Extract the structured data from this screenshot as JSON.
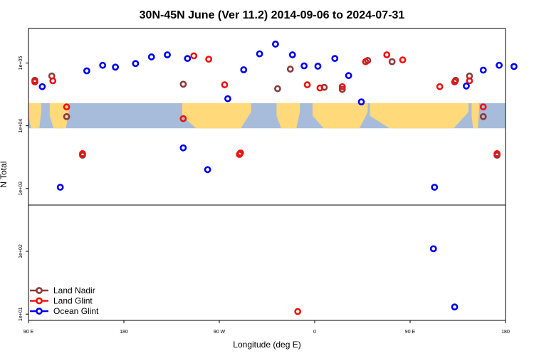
{
  "chart_data": {
    "type": "scatter",
    "title": "30N-45N June (Ver 11.2)   2014-09-06 to 2024-07-31",
    "xlabel": "Longitude (deg E)",
    "ylabel": "N Total",
    "yscale": "log",
    "xlim": [
      90,
      540
    ],
    "ylim_log10": [
      0.9,
      5.55
    ],
    "x_ticks": [
      {
        "value": 90,
        "label": "90 E"
      },
      {
        "value": 180,
        "label": "180"
      },
      {
        "value": 270,
        "label": "90 W"
      },
      {
        "value": 360,
        "label": "0"
      },
      {
        "value": 450,
        "label": "90 E"
      },
      {
        "value": 540,
        "label": "180"
      }
    ],
    "y_ticks": [
      {
        "value": 10,
        "label": "1e+01"
      },
      {
        "value": 100,
        "label": "1e+02"
      },
      {
        "value": 1000,
        "label": "1e+03"
      },
      {
        "value": 10000,
        "label": "1e+04"
      },
      {
        "value": 100000,
        "label": "1e+05"
      }
    ],
    "map_band": {
      "log10_range": [
        3.96,
        4.36
      ],
      "lon_range": [
        90,
        540
      ],
      "ocean_color": "#a7bcdb",
      "land_color": "#ffd97a"
    },
    "legend_position": "bottom-left",
    "series": [
      {
        "name": "Land Nadir",
        "color": "#8b3a3a",
        "points": [
          [
            96,
            53000
          ],
          [
            112,
            62000
          ],
          [
            126,
            14000
          ],
          [
            141,
            3400
          ],
          [
            236,
            46000
          ],
          [
            325,
            39000
          ],
          [
            337,
            80000
          ],
          [
            369,
            41000
          ],
          [
            386,
            38000
          ],
          [
            410,
            110000
          ],
          [
            433,
            105000
          ],
          [
            493,
            53000
          ],
          [
            506,
            62000
          ],
          [
            519,
            14000
          ],
          [
            532,
            3400
          ]
        ]
      },
      {
        "name": "Land Glint",
        "color": "#ee1111",
        "points": [
          [
            96,
            50000
          ],
          [
            113,
            52000
          ],
          [
            126,
            20000
          ],
          [
            141,
            3600
          ],
          [
            236,
            13000
          ],
          [
            246,
            130000
          ],
          [
            260,
            115000
          ],
          [
            275,
            45000
          ],
          [
            289,
            3500
          ],
          [
            290,
            3700
          ],
          [
            353,
            45000
          ],
          [
            365,
            40000
          ],
          [
            386,
            42000
          ],
          [
            408,
            105000
          ],
          [
            428,
            135000
          ],
          [
            443,
            112000
          ],
          [
            478,
            42000
          ],
          [
            492,
            50000
          ],
          [
            506,
            52000
          ],
          [
            519,
            20000
          ],
          [
            532,
            3600
          ]
        ]
      },
      {
        "name": "Ocean Glint",
        "color": "#0000ee",
        "points": [
          [
            120,
            1050
          ],
          [
            103,
            42000
          ],
          [
            145,
            75000
          ],
          [
            160,
            92000
          ],
          [
            172,
            86000
          ],
          [
            191,
            98000
          ],
          [
            206,
            125000
          ],
          [
            221,
            135000
          ],
          [
            236,
            4450
          ],
          [
            240,
            118000
          ],
          [
            259,
            2000
          ],
          [
            278,
            27000
          ],
          [
            293,
            78000
          ],
          [
            308,
            140000
          ],
          [
            323,
            200000
          ],
          [
            339,
            135000
          ],
          [
            350,
            90000
          ],
          [
            363,
            89000
          ],
          [
            379,
            118000
          ],
          [
            392,
            63000
          ],
          [
            404,
            24000
          ],
          [
            472,
            110
          ],
          [
            473,
            1050
          ],
          [
            492,
            13
          ],
          [
            503,
            43000
          ],
          [
            519,
            77000
          ],
          [
            534,
            92000
          ],
          [
            548,
            88000
          ]
        ]
      }
    ],
    "extra_points_note": "",
    "land_glint_low_point": [
      [
        344,
        11
      ]
    ]
  }
}
